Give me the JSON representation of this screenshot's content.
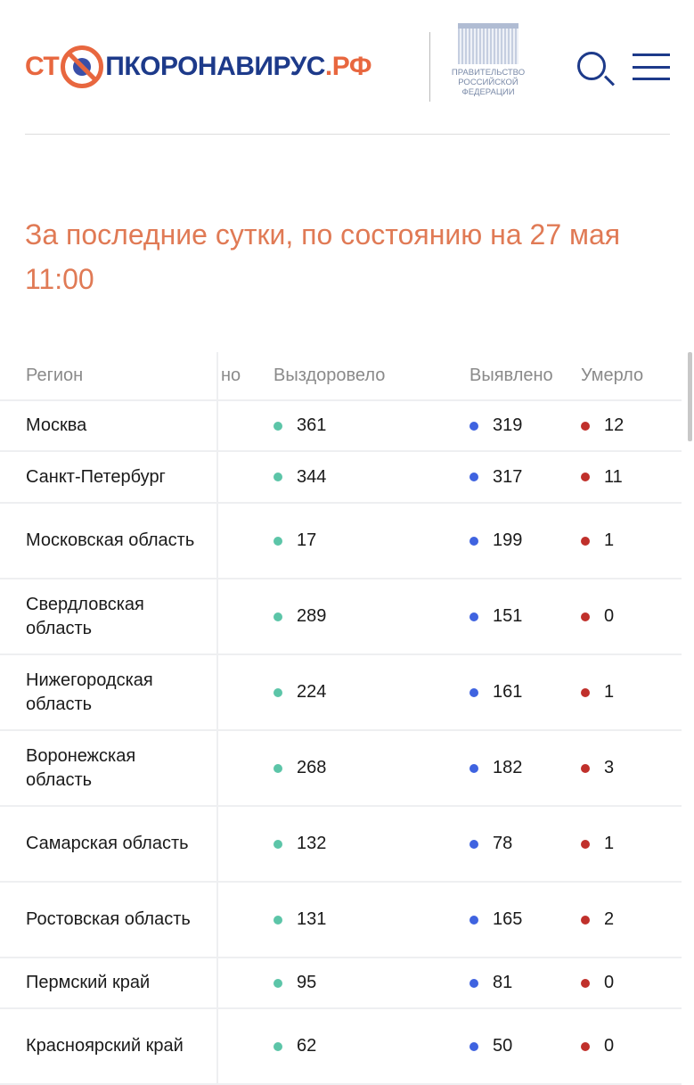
{
  "header": {
    "logo_prefix": "СТ",
    "logo_suffix": "ПКОРОНАВИРУС",
    "logo_domain": ".РФ",
    "gov_line1": "ПРАВИТЕЛЬСТВО",
    "gov_line2": "РОССИЙСКОЙ",
    "gov_line3": "ФЕДЕРАЦИИ"
  },
  "title": "За последние сутки, по состоянию на 27 мая 11:00",
  "colors": {
    "recovered": "#5cc5a8",
    "detected": "#3f63e0",
    "died": "#c0302b",
    "accent": "#e07a55",
    "brand": "#1d3a8a"
  },
  "table": {
    "headers": {
      "region": "Регион",
      "partial": "но",
      "recovered": "Выздоровело",
      "detected": "Выявлено",
      "died": "Умерло"
    },
    "rows": [
      {
        "region": "Москва",
        "recovered": "361",
        "detected": "319",
        "died": "12"
      },
      {
        "region": "Санкт-Петербург",
        "recovered": "344",
        "detected": "317",
        "died": "11"
      },
      {
        "region": "Московская область",
        "recovered": "17",
        "detected": "199",
        "died": "1"
      },
      {
        "region": "Свердловская область",
        "recovered": "289",
        "detected": "151",
        "died": "0"
      },
      {
        "region": "Нижегородская область",
        "recovered": "224",
        "detected": "161",
        "died": "1"
      },
      {
        "region": "Воронежская область",
        "recovered": "268",
        "detected": "182",
        "died": "3"
      },
      {
        "region": "Самарская область",
        "recovered": "132",
        "detected": "78",
        "died": "1"
      },
      {
        "region": "Ростовская область",
        "recovered": "131",
        "detected": "165",
        "died": "2"
      },
      {
        "region": "Пермский край",
        "recovered": "95",
        "detected": "81",
        "died": "0"
      },
      {
        "region": "Красноярский край",
        "recovered": "62",
        "detected": "50",
        "died": "0"
      }
    ]
  }
}
